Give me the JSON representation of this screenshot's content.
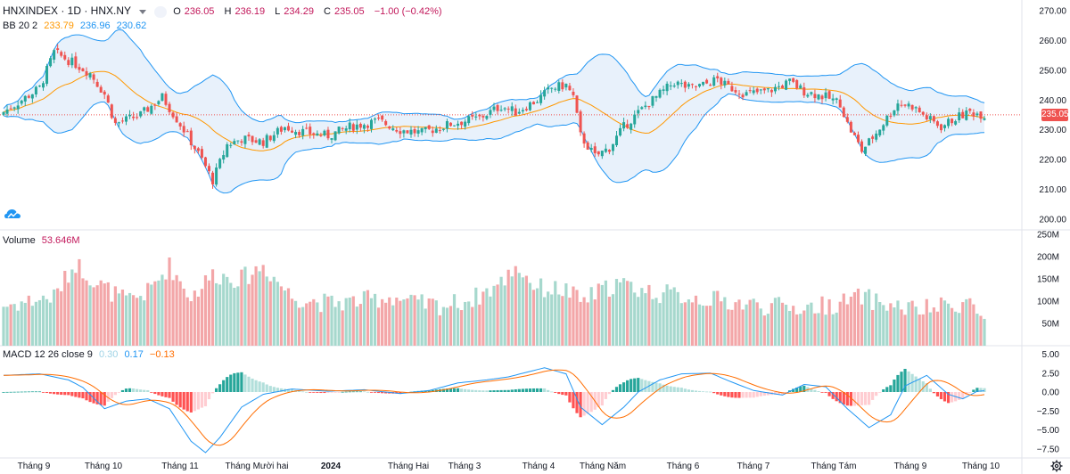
{
  "header": {
    "symbol": "HNXINDEX · 1D · HNX.NY",
    "o_label": "O",
    "o": "236.05",
    "h_label": "H",
    "h": "236.19",
    "l_label": "L",
    "l": "234.29",
    "c_label": "C",
    "c": "235.05",
    "change": "−1.00 (−0.42%)"
  },
  "bb": {
    "label": "BB 20 2",
    "basis": "233.79",
    "upper": "236.96",
    "lower": "230.62"
  },
  "volume": {
    "label": "Volume",
    "value": "53.646M"
  },
  "macd": {
    "label": "MACD 12 26 close 9",
    "hist": "0.30",
    "macd": "0.17",
    "signal": "−0.13"
  },
  "last_price_tag": "235.05",
  "colors": {
    "up": "#26a69a",
    "down": "#ef5350",
    "up_vol": "#a6d8cd",
    "down_vol": "#f3a6a8",
    "bb_basis": "#ff9800",
    "bb_band": "#2196f3",
    "band_fill": "#e8f1fb",
    "macd_line": "#2196f3",
    "signal_line": "#ff6d00"
  },
  "chart_data": {
    "type": "candlestick",
    "price_axis": {
      "ticks": [
        "270.00",
        "260.00",
        "250.00",
        "240.00",
        "230.00",
        "220.00",
        "210.00",
        "200.00"
      ],
      "ylim": [
        198,
        274
      ]
    },
    "volume_axis": {
      "ticks": [
        "250M",
        "200M",
        "150M",
        "100M",
        "50M"
      ],
      "ylim": [
        0,
        265
      ]
    },
    "macd_axis": {
      "ticks": [
        "5.00",
        "2.50",
        "0.00",
        "−2.50",
        "−5.00",
        "−7.50"
      ],
      "ylim": [
        -9,
        6
      ]
    },
    "x_labels": [
      "Tháng 9",
      "Tháng 10",
      "Tháng 11",
      "Tháng Mười hai",
      "2024",
      "Tháng Hai",
      "Tháng 3",
      "Tháng 4",
      "Tháng Năm",
      "Tháng 6",
      "Tháng 7",
      "Tháng Tám",
      "Tháng 9",
      "Tháng 10"
    ],
    "close_anchors": [
      [
        0,
        236
      ],
      [
        10,
        244
      ],
      [
        14,
        256
      ],
      [
        20,
        252
      ],
      [
        24,
        249
      ],
      [
        28,
        242
      ],
      [
        31,
        232
      ],
      [
        38,
        235
      ],
      [
        44,
        241
      ],
      [
        50,
        230
      ],
      [
        55,
        220
      ],
      [
        58,
        213
      ],
      [
        62,
        225
      ],
      [
        66,
        227
      ],
      [
        72,
        226
      ],
      [
        78,
        231
      ],
      [
        84,
        229
      ],
      [
        90,
        228
      ],
      [
        96,
        231
      ],
      [
        104,
        233
      ],
      [
        110,
        230
      ],
      [
        116,
        229
      ],
      [
        124,
        232
      ],
      [
        132,
        234
      ],
      [
        138,
        238
      ],
      [
        142,
        236
      ],
      [
        148,
        240
      ],
      [
        152,
        244
      ],
      [
        156,
        245
      ],
      [
        158,
        241
      ],
      [
        160,
        228
      ],
      [
        164,
        221
      ],
      [
        168,
        224
      ],
      [
        172,
        231
      ],
      [
        178,
        238
      ],
      [
        182,
        242
      ],
      [
        186,
        246
      ],
      [
        190,
        244
      ],
      [
        194,
        245
      ],
      [
        198,
        247
      ],
      [
        200,
        245
      ],
      [
        206,
        242
      ],
      [
        212,
        243
      ],
      [
        218,
        246
      ],
      [
        222,
        243
      ],
      [
        228,
        241
      ],
      [
        232,
        239
      ],
      [
        234,
        232
      ],
      [
        238,
        223
      ],
      [
        242,
        229
      ],
      [
        248,
        239
      ],
      [
        252,
        238
      ],
      [
        256,
        234
      ],
      [
        260,
        231
      ],
      [
        264,
        234
      ],
      [
        268,
        236
      ],
      [
        272,
        235
      ]
    ],
    "volume_anchors": [
      [
        0,
        90
      ],
      [
        14,
        110
      ],
      [
        20,
        185
      ],
      [
        26,
        140
      ],
      [
        34,
        100
      ],
      [
        40,
        120
      ],
      [
        46,
        180
      ],
      [
        52,
        110
      ],
      [
        58,
        160
      ],
      [
        66,
        150
      ],
      [
        72,
        180
      ],
      [
        80,
        110
      ],
      [
        90,
        95
      ],
      [
        98,
        100
      ],
      [
        108,
        110
      ],
      [
        114,
        95
      ],
      [
        122,
        90
      ],
      [
        130,
        105
      ],
      [
        138,
        140
      ],
      [
        142,
        180
      ],
      [
        148,
        130
      ],
      [
        156,
        125
      ],
      [
        160,
        100
      ],
      [
        170,
        140
      ],
      [
        180,
        120
      ],
      [
        190,
        110
      ],
      [
        200,
        100
      ],
      [
        210,
        90
      ],
      [
        222,
        85
      ],
      [
        232,
        95
      ],
      [
        238,
        110
      ],
      [
        246,
        90
      ],
      [
        254,
        80
      ],
      [
        262,
        90
      ],
      [
        268,
        100
      ],
      [
        272,
        54
      ]
    ],
    "macd_anchors": [
      [
        0,
        2.2
      ],
      [
        10,
        2.4
      ],
      [
        18,
        1.6
      ],
      [
        22,
        0.6
      ],
      [
        28,
        -2.2
      ],
      [
        34,
        -1.2
      ],
      [
        40,
        -0.9
      ],
      [
        46,
        -2.2
      ],
      [
        52,
        -6.5
      ],
      [
        56,
        -8
      ],
      [
        60,
        -6
      ],
      [
        66,
        -2
      ],
      [
        72,
        -0.3
      ],
      [
        80,
        0.4
      ],
      [
        90,
        0.1
      ],
      [
        100,
        0.3
      ],
      [
        110,
        -0.2
      ],
      [
        118,
        0.2
      ],
      [
        126,
        1.2
      ],
      [
        134,
        1.6
      ],
      [
        140,
        2
      ],
      [
        150,
        3.2
      ],
      [
        156,
        2.4
      ],
      [
        160,
        -2
      ],
      [
        166,
        -4.3
      ],
      [
        172,
        -2
      ],
      [
        176,
        0
      ],
      [
        182,
        1.6
      ],
      [
        188,
        2.4
      ],
      [
        196,
        2.5
      ],
      [
        202,
        1.3
      ],
      [
        208,
        0.2
      ],
      [
        216,
        -0.4
      ],
      [
        222,
        1
      ],
      [
        228,
        0.7
      ],
      [
        234,
        -2.2
      ],
      [
        240,
        -4.7
      ],
      [
        246,
        -3
      ],
      [
        250,
        0.8
      ],
      [
        256,
        2.2
      ],
      [
        262,
        -0.3
      ],
      [
        266,
        -0.9
      ],
      [
        270,
        0.1
      ],
      [
        272,
        0.17
      ]
    ]
  }
}
